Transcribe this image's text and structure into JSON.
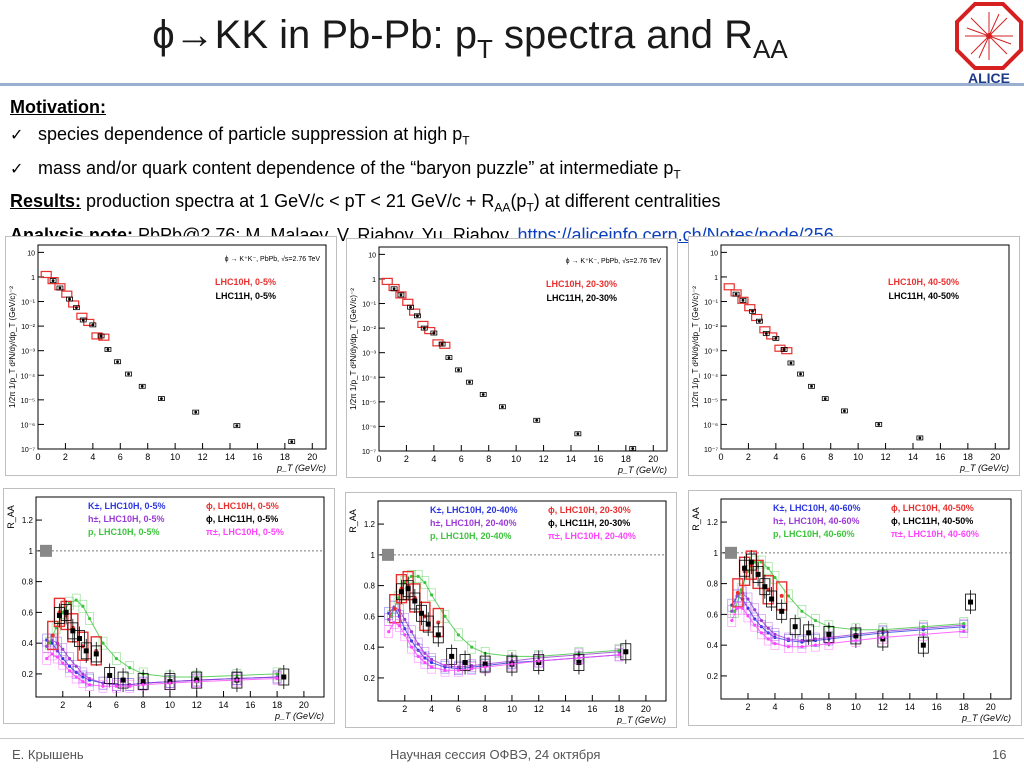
{
  "slide": {
    "title_pre": "ϕ→KK in Pb-Pb: p",
    "title_sub1": "T",
    "title_mid": " spectra and R",
    "title_sub2": "AA",
    "logo_text": "ALICE"
  },
  "text": {
    "motivation_label": "Motivation:",
    "bullet1_main": "species dependence of particle suppression at high p",
    "bullet1_sub": "T",
    "bullet2_main": "mass and/or quark content dependence of the “baryon puzzle” at intermediate p",
    "bullet2_sub": "T",
    "results_label": "Results:",
    "results_text_a": " production spectra at 1 GeV/c < pT < 21 GeV/c  +  R",
    "results_sub1": "AA",
    "results_text_b": "(p",
    "results_sub2": "T",
    "results_text_c": ") at different centralities",
    "note_label": "Analysis note:",
    "note_text": " PbPb@2.76: M. Malaev, V. Riabov, Yu. Riabov, ",
    "note_link": "https://aliceinfo.cern.ch/Notes/node/256"
  },
  "footer": {
    "author": "Е. Крышень",
    "session": "Научная сессия ОФВЭ, 24 октября",
    "page": "16"
  },
  "colors": {
    "lhc10h": "#e8312f",
    "lhc11h": "#000000",
    "kaon": "#2b36e0",
    "hadron": "#9b3bd6",
    "proton": "#3cc43c",
    "pion": "#ff44ff",
    "link": "#0b3fbf"
  },
  "chart_data": [
    {
      "type": "scatter",
      "panel": "spectra",
      "ylabel": "1/2π 1/p_T d²N/dy/dp_T (GeV/c)⁻²",
      "xlabel": "p_T (GeV/c)",
      "xticks": [
        "0",
        "2",
        "4",
        "6",
        "8",
        "10",
        "12",
        "14",
        "16",
        "18",
        "20"
      ],
      "yticks": [
        "10⁻⁷",
        "10⁻⁶",
        "10⁻⁵",
        "10⁻⁴",
        "10⁻³",
        "10⁻²",
        "10⁻¹",
        "1",
        "10"
      ],
      "yscale": "log",
      "xlim": [
        0,
        21
      ],
      "ylim_exp": [
        -7,
        1.3
      ],
      "header": "ϕ → K⁺K⁻, PbPb, √s=2.76 TeV",
      "legend": [
        "LHC10H, 0-5%",
        "LHC11H, 0-5%"
      ],
      "series": [
        {
          "name": "LHC10H, 0-5%",
          "x": [
            0.6,
            1.1,
            1.6,
            2.1,
            2.6,
            3.2,
            3.7,
            4.3,
            4.8
          ],
          "log10y": [
            0.1,
            -0.15,
            -0.4,
            -0.7,
            -1.1,
            -1.6,
            -1.85,
            -2.4,
            -2.45
          ]
        },
        {
          "name": "LHC11H, 0-5%",
          "x": [
            1.1,
            1.6,
            2.3,
            2.8,
            3.3,
            4.0,
            4.6,
            5.1,
            5.8,
            6.6,
            7.6,
            9.0,
            11.5,
            14.5,
            18.5
          ],
          "log10y": [
            -0.15,
            -0.45,
            -0.9,
            -1.25,
            -1.75,
            -1.95,
            -2.4,
            -2.95,
            -3.45,
            -3.95,
            -4.45,
            -4.95,
            -5.5,
            -6.05,
            -6.7
          ]
        }
      ]
    },
    {
      "type": "scatter",
      "panel": "spectra",
      "ylabel": "1/2π 1/p_T d²N/dy/dp_T (GeV/c)⁻²",
      "xlabel": "p_T (GeV/c)",
      "xticks": [
        "0",
        "2",
        "4",
        "6",
        "8",
        "10",
        "12",
        "14",
        "16",
        "18",
        "20"
      ],
      "yticks": [
        "10⁻⁷",
        "10⁻⁶",
        "10⁻⁵",
        "10⁻⁴",
        "10⁻³",
        "10⁻²",
        "10⁻¹",
        "1",
        "10"
      ],
      "yscale": "log",
      "xlim": [
        0,
        21
      ],
      "ylim_exp": [
        -7,
        1.3
      ],
      "header": "ϕ → K⁺K⁻, PbPb, √s=2.76 TeV",
      "legend": [
        "LHC10H, 20-30%",
        "LHC11H, 20-30%"
      ],
      "series": [
        {
          "name": "LHC10H, 20-30%",
          "x": [
            0.6,
            1.1,
            1.6,
            2.1,
            2.6,
            3.2,
            3.7,
            4.3,
            4.8
          ],
          "log10y": [
            -0.1,
            -0.35,
            -0.65,
            -0.95,
            -1.35,
            -1.85,
            -2.1,
            -2.6,
            -2.7
          ]
        },
        {
          "name": "LHC11H, 20-30%",
          "x": [
            1.1,
            1.6,
            2.3,
            2.8,
            3.3,
            4.0,
            4.6,
            5.1,
            5.8,
            6.6,
            7.6,
            9.0,
            11.5,
            14.5,
            18.5
          ],
          "log10y": [
            -0.4,
            -0.65,
            -1.15,
            -1.5,
            -2.0,
            -2.2,
            -2.65,
            -3.2,
            -3.7,
            -4.2,
            -4.7,
            -5.2,
            -5.75,
            -6.3,
            -6.9
          ]
        }
      ]
    },
    {
      "type": "scatter",
      "panel": "spectra",
      "ylabel": "1/2π 1/p_T d²N/dy/dp_T (GeV/c)⁻²",
      "xlabel": "p_T (GeV/c)",
      "xticks": [
        "0",
        "2",
        "4",
        "6",
        "8",
        "10",
        "12",
        "14",
        "16",
        "18",
        "20"
      ],
      "yticks": [
        "10⁻⁷",
        "10⁻⁶",
        "10⁻⁵",
        "10⁻⁴",
        "10⁻³",
        "10⁻²",
        "10⁻¹",
        "1",
        "10"
      ],
      "yscale": "log",
      "xlim": [
        0,
        21
      ],
      "ylim_exp": [
        -7,
        1.3
      ],
      "header": "",
      "legend": [
        "LHC10H, 40-50%",
        "LHC11H, 40-50%"
      ],
      "series": [
        {
          "name": "LHC10H, 40-50%",
          "x": [
            0.6,
            1.1,
            1.6,
            2.1,
            2.6,
            3.2,
            3.7,
            4.3,
            4.8
          ],
          "log10y": [
            -0.4,
            -0.65,
            -0.95,
            -1.25,
            -1.65,
            -2.15,
            -2.4,
            -2.9,
            -3.0
          ]
        },
        {
          "name": "LHC11H, 40-50%",
          "x": [
            1.1,
            1.6,
            2.3,
            2.8,
            3.3,
            4.0,
            4.6,
            5.1,
            5.8,
            6.6,
            7.6,
            9.0,
            11.5,
            14.5
          ],
          "log10y": [
            -0.7,
            -0.95,
            -1.4,
            -1.8,
            -2.3,
            -2.5,
            -2.95,
            -3.5,
            -3.95,
            -4.45,
            -4.95,
            -5.45,
            -6.0,
            -6.55
          ]
        }
      ]
    },
    {
      "type": "scatter",
      "panel": "raa",
      "ylabel": "R_AA",
      "xlabel": "p_T (GeV/c)",
      "xticks": [
        "2",
        "4",
        "6",
        "8",
        "10",
        "12",
        "14",
        "16",
        "18",
        "20"
      ],
      "yticks": [
        "0.2",
        "0.4",
        "0.6",
        "0.8",
        "1",
        "1.2"
      ],
      "xlim": [
        0,
        21.5
      ],
      "ylim": [
        0.05,
        1.35
      ],
      "legend": [
        "K±, LHC10H, 0-5%",
        "h±, LHC10H, 0-5%",
        "p, LHC10H, 0-5%",
        "ϕ, LHC10H, 0-5%",
        "ϕ, LHC11H, 0-5%",
        "π±, LHC10H, 0-5%"
      ],
      "series": [
        {
          "name": "K±, LHC10H, 0-5%",
          "x": [
            0.8,
            1.2,
            1.6,
            2.0,
            2.5,
            3.0,
            3.5,
            4.0,
            5.0,
            6.0,
            7.0,
            8.0,
            10.0,
            12.0,
            15.0,
            18.0
          ],
          "y": [
            0.42,
            0.4,
            0.35,
            0.3,
            0.25,
            0.21,
            0.18,
            0.16,
            0.14,
            0.13,
            0.13,
            0.14,
            0.15,
            0.16,
            0.17,
            0.18
          ]
        },
        {
          "name": "h±, LHC10H, 0-5%",
          "x": [
            0.8,
            1.2,
            1.6,
            2.0,
            2.5,
            3.0,
            3.5,
            4.0,
            5.0,
            6.0,
            7.0,
            8.0,
            10.0,
            12.0,
            15.0,
            18.0
          ],
          "y": [
            0.38,
            0.42,
            0.4,
            0.36,
            0.3,
            0.25,
            0.2,
            0.17,
            0.14,
            0.13,
            0.13,
            0.14,
            0.15,
            0.16,
            0.17,
            0.18
          ]
        },
        {
          "name": "p, LHC10H, 0-5%",
          "x": [
            1.0,
            1.5,
            2.0,
            2.5,
            3.0,
            3.5,
            4.0,
            5.0,
            6.0,
            7.0,
            8.0,
            10.0,
            12.0,
            15.0,
            18.0
          ],
          "y": [
            0.4,
            0.5,
            0.6,
            0.66,
            0.68,
            0.64,
            0.56,
            0.4,
            0.3,
            0.24,
            0.2,
            0.18,
            0.18,
            0.19,
            0.2
          ]
        },
        {
          "name": "ϕ, LHC10H, 0-5%",
          "x": [
            1.25,
            1.75,
            2.25,
            2.75,
            3.5,
            4.5
          ],
          "y": [
            0.45,
            0.6,
            0.58,
            0.5,
            0.38,
            0.35
          ]
        },
        {
          "name": "ϕ, LHC11H, 0-5%",
          "x": [
            1.75,
            2.25,
            2.75,
            3.25,
            3.75,
            4.5,
            5.5,
            6.5,
            8.0,
            10.0,
            12.0,
            15.0,
            18.5
          ],
          "y": [
            0.58,
            0.6,
            0.48,
            0.43,
            0.35,
            0.33,
            0.19,
            0.16,
            0.15,
            0.15,
            0.16,
            0.16,
            0.18
          ]
        },
        {
          "name": "π±, LHC10H, 0-5%",
          "x": [
            0.8,
            1.2,
            1.6,
            2.0,
            2.5,
            3.0,
            3.5,
            4.0,
            5.0,
            6.0,
            7.0,
            8.0,
            10.0,
            12.0,
            15.0,
            18.0
          ],
          "y": [
            0.3,
            0.33,
            0.31,
            0.27,
            0.22,
            0.18,
            0.15,
            0.13,
            0.12,
            0.12,
            0.12,
            0.13,
            0.14,
            0.15,
            0.16,
            0.17
          ]
        }
      ]
    },
    {
      "type": "scatter",
      "panel": "raa",
      "ylabel": "R_AA",
      "xlabel": "p_T (GeV/c)",
      "xticks": [
        "2",
        "4",
        "6",
        "8",
        "10",
        "12",
        "14",
        "16",
        "18",
        "20"
      ],
      "yticks": [
        "0.2",
        "0.4",
        "0.6",
        "0.8",
        "1",
        "1.2"
      ],
      "xlim": [
        0,
        21.5
      ],
      "ylim": [
        0.05,
        1.35
      ],
      "legend": [
        "K±, LHC10H, 20-40%",
        "h±, LHC10H, 20-40%",
        "p, LHC10H, 20-40%",
        "ϕ, LHC10H, 20-30%",
        "ϕ, LHC11H, 20-30%",
        "π±, LHC10H, 20-40%"
      ],
      "series": [
        {
          "name": "K±, LHC10H, 20-40%",
          "x": [
            0.8,
            1.2,
            1.6,
            2.0,
            2.5,
            3.0,
            3.5,
            4.0,
            5.0,
            6.0,
            7.0,
            8.0,
            10.0,
            12.0,
            15.0,
            18.0
          ],
          "y": [
            0.62,
            0.66,
            0.6,
            0.52,
            0.44,
            0.38,
            0.33,
            0.3,
            0.27,
            0.26,
            0.27,
            0.28,
            0.3,
            0.31,
            0.33,
            0.35
          ]
        },
        {
          "name": "h±, LHC10H, 20-40%",
          "x": [
            0.8,
            1.2,
            1.6,
            2.0,
            2.5,
            3.0,
            3.5,
            4.0,
            5.0,
            6.0,
            7.0,
            8.0,
            10.0,
            12.0,
            15.0,
            18.0
          ],
          "y": [
            0.58,
            0.66,
            0.64,
            0.58,
            0.5,
            0.42,
            0.36,
            0.32,
            0.28,
            0.27,
            0.28,
            0.29,
            0.31,
            0.33,
            0.35,
            0.37
          ]
        },
        {
          "name": "p, LHC10H, 20-40%",
          "x": [
            1.0,
            1.5,
            2.0,
            2.5,
            3.0,
            3.5,
            4.0,
            5.0,
            6.0,
            7.0,
            8.0,
            10.0,
            12.0,
            15.0,
            18.0
          ],
          "y": [
            0.6,
            0.72,
            0.82,
            0.86,
            0.86,
            0.82,
            0.74,
            0.6,
            0.48,
            0.4,
            0.36,
            0.34,
            0.34,
            0.36,
            0.38
          ]
        },
        {
          "name": "ϕ, LHC10H, 20-30%",
          "x": [
            1.25,
            1.75,
            2.25,
            2.75,
            3.5,
            4.5
          ],
          "y": [
            0.65,
            0.78,
            0.8,
            0.72,
            0.6,
            0.56
          ]
        },
        {
          "name": "ϕ, LHC11H, 20-30%",
          "x": [
            1.75,
            2.25,
            2.75,
            3.25,
            3.75,
            4.5,
            5.5,
            6.5,
            8.0,
            10.0,
            12.0,
            15.0,
            18.5
          ],
          "y": [
            0.76,
            0.78,
            0.7,
            0.62,
            0.55,
            0.48,
            0.34,
            0.3,
            0.29,
            0.29,
            0.3,
            0.3,
            0.37
          ]
        },
        {
          "name": "π±, LHC10H, 20-40%",
          "x": [
            0.8,
            1.2,
            1.6,
            2.0,
            2.5,
            3.0,
            3.5,
            4.0,
            5.0,
            6.0,
            7.0,
            8.0,
            10.0,
            12.0,
            15.0,
            18.0
          ],
          "y": [
            0.5,
            0.56,
            0.54,
            0.48,
            0.4,
            0.34,
            0.3,
            0.27,
            0.25,
            0.25,
            0.26,
            0.27,
            0.29,
            0.31,
            0.33,
            0.35
          ]
        }
      ]
    },
    {
      "type": "scatter",
      "panel": "raa",
      "ylabel": "R_AA",
      "xlabel": "p_T (GeV/c)",
      "xticks": [
        "2",
        "4",
        "6",
        "8",
        "10",
        "12",
        "14",
        "16",
        "18",
        "20"
      ],
      "yticks": [
        "0.2",
        "0.4",
        "0.6",
        "0.8",
        "1",
        "1.2"
      ],
      "xlim": [
        0,
        21.5
      ],
      "ylim": [
        0.05,
        1.35
      ],
      "legend": [
        "K±, LHC10H, 40-60%",
        "h±, LHC10H, 40-60%",
        "p, LHC10H, 40-60%",
        "ϕ, LHC10H, 40-50%",
        "ϕ, LHC11H, 40-50%",
        "π±, LHC10H, 40-60%"
      ],
      "series": [
        {
          "name": "K±, LHC10H, 40-60%",
          "x": [
            0.8,
            1.2,
            1.6,
            2.0,
            2.5,
            3.0,
            3.5,
            4.0,
            5.0,
            6.0,
            7.0,
            8.0,
            10.0,
            12.0,
            15.0,
            18.0
          ],
          "y": [
            0.66,
            0.72,
            0.7,
            0.64,
            0.57,
            0.52,
            0.48,
            0.45,
            0.43,
            0.42,
            0.43,
            0.44,
            0.46,
            0.48,
            0.5,
            0.52
          ]
        },
        {
          "name": "h±, LHC10H, 40-60%",
          "x": [
            0.8,
            1.2,
            1.6,
            2.0,
            2.5,
            3.0,
            3.5,
            4.0,
            5.0,
            6.0,
            7.0,
            8.0,
            10.0,
            12.0,
            15.0,
            18.0
          ],
          "y": [
            0.62,
            0.72,
            0.74,
            0.7,
            0.63,
            0.56,
            0.51,
            0.47,
            0.44,
            0.43,
            0.44,
            0.45,
            0.47,
            0.49,
            0.51,
            0.53
          ]
        },
        {
          "name": "p, LHC10H, 40-60%",
          "x": [
            1.0,
            1.5,
            2.0,
            2.5,
            3.0,
            3.5,
            4.0,
            5.0,
            6.0,
            7.0,
            8.0,
            10.0,
            12.0,
            15.0,
            18.0
          ],
          "y": [
            0.62,
            0.76,
            0.88,
            0.94,
            0.94,
            0.9,
            0.84,
            0.72,
            0.62,
            0.56,
            0.52,
            0.5,
            0.5,
            0.52,
            0.54
          ]
        },
        {
          "name": "ϕ, LHC10H, 40-50%",
          "x": [
            1.25,
            1.75,
            2.25,
            2.75,
            3.5,
            4.5
          ],
          "y": [
            0.74,
            0.88,
            0.92,
            0.86,
            0.76,
            0.72
          ]
        },
        {
          "name": "ϕ, LHC11H, 40-50%",
          "x": [
            1.75,
            2.25,
            2.75,
            3.25,
            3.75,
            4.5,
            5.5,
            6.5,
            8.0,
            10.0,
            12.0,
            15.0,
            18.5
          ],
          "y": [
            0.9,
            0.94,
            0.86,
            0.78,
            0.7,
            0.62,
            0.52,
            0.48,
            0.47,
            0.46,
            0.44,
            0.4,
            0.68
          ]
        },
        {
          "name": "π±, LHC10H, 40-60%",
          "x": [
            0.8,
            1.2,
            1.6,
            2.0,
            2.5,
            3.0,
            3.5,
            4.0,
            5.0,
            6.0,
            7.0,
            8.0,
            10.0,
            12.0,
            15.0,
            18.0
          ],
          "y": [
            0.56,
            0.64,
            0.64,
            0.59,
            0.53,
            0.48,
            0.44,
            0.41,
            0.39,
            0.39,
            0.4,
            0.41,
            0.43,
            0.45,
            0.47,
            0.49
          ]
        }
      ]
    }
  ]
}
